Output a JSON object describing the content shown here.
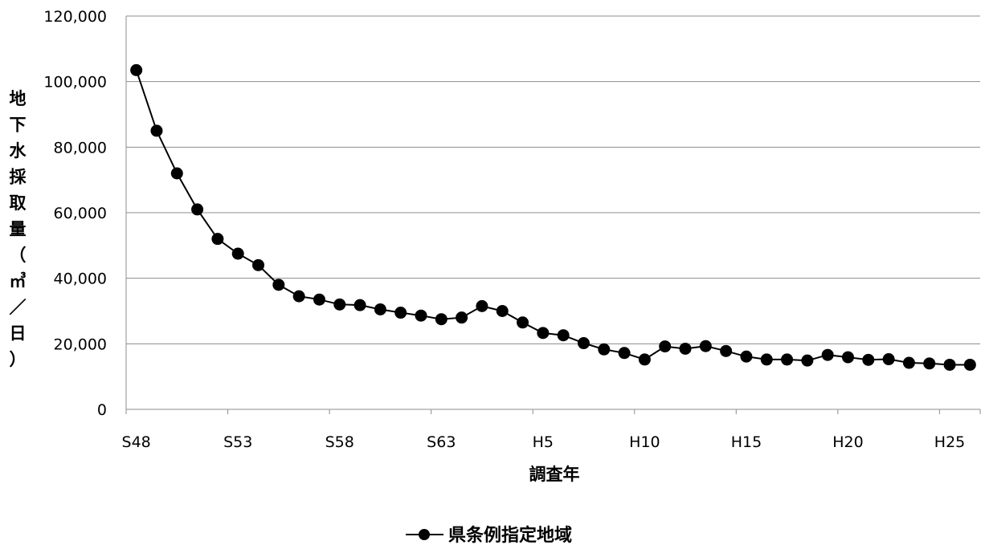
{
  "chart_data": {
    "type": "line",
    "title": "",
    "xlabel": "調査年",
    "ylabel": "地下水採取量（㎥／日）",
    "ylim": [
      0,
      120000
    ],
    "y_ticks": [
      "0",
      "20,000",
      "40,000",
      "60,000",
      "80,000",
      "100,000",
      "120,000"
    ],
    "x_tick_labels": [
      "S48",
      "S53",
      "S58",
      "S63",
      "H5",
      "H10",
      "H15",
      "H20",
      "H25"
    ],
    "grid": "horizontal",
    "legend_position": "bottom-center",
    "series": [
      {
        "name": "県条例指定地域",
        "color": "#000000",
        "marker": "circle",
        "x": [
          "S48",
          "S49",
          "S50",
          "S51",
          "S52",
          "S53",
          "S54",
          "S55",
          "S56",
          "S57",
          "S58",
          "S59",
          "S60",
          "S61",
          "S62",
          "S63",
          "H1",
          "H2",
          "H3",
          "H4",
          "H5",
          "H6",
          "H7",
          "H8",
          "H9",
          "H10",
          "H11",
          "H12",
          "H13",
          "H14",
          "H15",
          "H16",
          "H17",
          "H18",
          "H19",
          "H20",
          "H21",
          "H22",
          "H23",
          "H24",
          "H25",
          "H26"
        ],
        "values": [
          103500,
          85000,
          72000,
          61000,
          52000,
          47500,
          44000,
          38000,
          34500,
          33500,
          32000,
          31800,
          30500,
          29500,
          28600,
          27500,
          28000,
          31500,
          30000,
          26500,
          23300,
          22600,
          20200,
          18300,
          17200,
          15200,
          19200,
          18500,
          19300,
          17800,
          16100,
          15200,
          15200,
          14900,
          16600,
          15900,
          15100,
          15300,
          14200,
          14000,
          13600,
          13600
        ]
      }
    ]
  }
}
